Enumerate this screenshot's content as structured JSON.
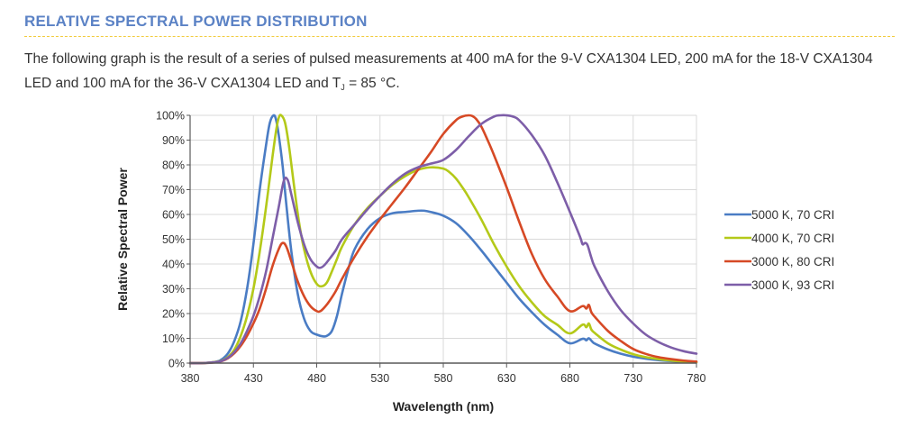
{
  "section": {
    "heading": "RELATIVE SPECTRAL POWER DISTRIBUTION",
    "paragraph_part1": "The following graph is the result of a series of pulsed measurements at 400 mA for the 9-V CXA1304 LED, 200 mA for the 18-V CXA1304 LED and 100 mA for the 36-V CXA1304 LED and T",
    "paragraph_subscript": "J",
    "paragraph_part2": " = 85 °C."
  },
  "colors": {
    "heading": "#5b82c5",
    "rule": "#f2cc3d",
    "grid": "#d9d9d9",
    "axis": "#595959"
  },
  "chart_data": {
    "type": "line",
    "title": "",
    "xlabel": "Wavelength (nm)",
    "ylabel": "Relative Spectral Power",
    "xlim": [
      380,
      780
    ],
    "ylim": [
      0,
      100
    ],
    "x_ticks": [
      380,
      430,
      480,
      530,
      580,
      630,
      680,
      730,
      780
    ],
    "x_tick_labels": [
      "380",
      "430",
      "480",
      "530",
      "580",
      "630",
      "680",
      "730",
      "780"
    ],
    "y_ticks": [
      0,
      10,
      20,
      30,
      40,
      50,
      60,
      70,
      80,
      90,
      100
    ],
    "y_tick_labels": [
      "0%",
      "10%",
      "20%",
      "30%",
      "40%",
      "50%",
      "60%",
      "70%",
      "80%",
      "90%",
      "100%"
    ],
    "grid": true,
    "legend_position": "right",
    "series": [
      {
        "name": "5000 K, 70 CRI",
        "color": "#4a7cc4",
        "x": [
          380,
          390,
          400,
          405,
          410,
          415,
          420,
          425,
          430,
          435,
          440,
          443,
          446,
          448,
          450,
          453,
          456,
          460,
          465,
          470,
          475,
          480,
          485,
          488,
          492,
          496,
          500,
          505,
          510,
          520,
          530,
          540,
          550,
          560,
          565,
          570,
          580,
          590,
          600,
          610,
          620,
          630,
          640,
          650,
          660,
          670,
          680,
          690,
          693,
          695,
          698,
          700,
          710,
          720,
          730,
          740,
          750,
          760,
          770,
          780
        ],
        "y": [
          0,
          0,
          0.5,
          1.5,
          4,
          9,
          17,
          30,
          48,
          70,
          88,
          97,
          100,
          98,
          92,
          80,
          64,
          45,
          28,
          18,
          13,
          11.5,
          10.8,
          11,
          13,
          19,
          28,
          38,
          46,
          54,
          58.5,
          60.5,
          61,
          61.5,
          61.5,
          61,
          59.5,
          56.5,
          51.5,
          45.5,
          39,
          32.5,
          26,
          20.5,
          15.5,
          11.5,
          8,
          9.8,
          9.2,
          10,
          8.5,
          7.8,
          5.5,
          3.8,
          2.6,
          1.8,
          1.2,
          0.8,
          0.5,
          0.3
        ]
      },
      {
        "name": "4000 K, 70 CRI",
        "color": "#b4c919",
        "x": [
          380,
          390,
          400,
          405,
          410,
          415,
          420,
          425,
          430,
          435,
          440,
          445,
          448,
          450,
          452,
          455,
          458,
          462,
          466,
          470,
          475,
          480,
          484,
          488,
          492,
          496,
          500,
          510,
          520,
          530,
          540,
          550,
          560,
          570,
          580,
          585,
          590,
          595,
          600,
          610,
          620,
          630,
          640,
          650,
          660,
          670,
          680,
          690,
          693,
          695,
          697,
          700,
          710,
          720,
          730,
          740,
          750,
          760,
          770,
          780
        ],
        "y": [
          0,
          0,
          0.5,
          1,
          2.5,
          5.5,
          11,
          19,
          30,
          45,
          63,
          83,
          94,
          99,
          100,
          97,
          88,
          72,
          57,
          46,
          37,
          32,
          31,
          32.5,
          37,
          42,
          47,
          56,
          62.5,
          67.5,
          72,
          75.5,
          78,
          79,
          78.5,
          77,
          74.5,
          71,
          67,
          58,
          48,
          39,
          31,
          24.5,
          19,
          15.5,
          12,
          15.5,
          14.5,
          16,
          13.5,
          12,
          8,
          5.5,
          3.6,
          2.4,
          1.6,
          1,
          0.6,
          0.3
        ]
      },
      {
        "name": "3000 K, 80 CRI",
        "color": "#d64925",
        "x": [
          380,
          390,
          400,
          405,
          410,
          415,
          420,
          425,
          430,
          435,
          440,
          445,
          450,
          453,
          456,
          460,
          465,
          470,
          475,
          480,
          483,
          487,
          490,
          495,
          500,
          510,
          520,
          530,
          540,
          550,
          560,
          570,
          580,
          590,
          595,
          600,
          603,
          606,
          610,
          615,
          620,
          630,
          640,
          650,
          660,
          670,
          680,
          690,
          693,
          695,
          697,
          700,
          710,
          720,
          730,
          740,
          750,
          760,
          770,
          780
        ],
        "y": [
          0,
          0,
          0.3,
          0.8,
          2,
          4,
          7,
          11,
          16,
          22,
          30,
          39,
          46,
          48.5,
          47,
          41,
          33,
          27,
          23,
          21,
          21,
          23,
          25,
          29,
          34,
          43,
          51,
          58,
          64.5,
          71,
          78,
          85,
          92.5,
          98,
          99.5,
          100,
          99.7,
          98.5,
          95.5,
          90,
          84,
          71,
          57,
          44,
          34,
          27,
          21,
          23,
          22,
          23.5,
          20.5,
          18.5,
          13,
          9,
          5.7,
          3.7,
          2.4,
          1.6,
          1,
          0.6
        ]
      },
      {
        "name": "3000 K, 93 CRI",
        "color": "#7d5ea8",
        "x": [
          380,
          390,
          400,
          405,
          410,
          415,
          420,
          425,
          430,
          435,
          440,
          445,
          450,
          454,
          457,
          460,
          465,
          470,
          475,
          480,
          483,
          486,
          490,
          495,
          500,
          510,
          520,
          530,
          540,
          550,
          560,
          570,
          580,
          590,
          600,
          610,
          620,
          625,
          630,
          635,
          640,
          650,
          660,
          670,
          680,
          688,
          690,
          692,
          694,
          697,
          700,
          710,
          720,
          730,
          740,
          750,
          760,
          770,
          780
        ],
        "y": [
          0,
          0,
          0.4,
          0.9,
          2.2,
          4.5,
          8,
          13,
          19,
          27,
          37,
          50,
          63,
          73.5,
          74,
          68,
          57,
          48,
          42,
          39,
          38.5,
          39.5,
          42,
          45.5,
          50,
          56,
          62,
          67.5,
          72.5,
          76.5,
          79,
          80.5,
          82,
          86,
          91.5,
          96.5,
          99.5,
          100,
          100,
          99.5,
          98,
          92,
          84,
          73,
          61,
          51,
          48,
          48.5,
          47.5,
          42.5,
          38.5,
          29,
          21.5,
          16,
          11.5,
          8.5,
          6.3,
          4.8,
          3.8
        ]
      }
    ]
  }
}
